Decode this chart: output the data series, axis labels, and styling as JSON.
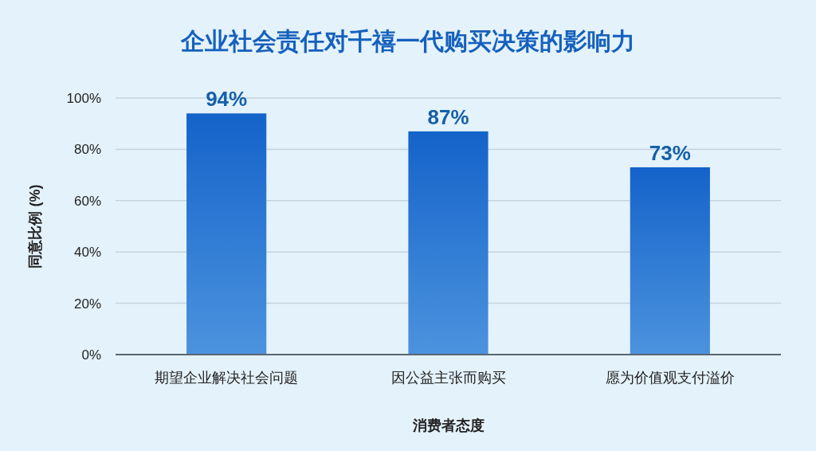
{
  "chart_data": {
    "type": "bar",
    "title": "企业社会责任对千禧一代购买决策的影响力",
    "xlabel": "消费者态度",
    "ylabel": "同意比例 (%)",
    "categories": [
      "期望企业解决社会问题",
      "因公益主张而购买",
      "愿为价值观支付溢价"
    ],
    "values": [
      94,
      87,
      73
    ],
    "value_labels": [
      "94%",
      "87%",
      "73%"
    ],
    "color": "#1f78d6",
    "ylim": [
      0,
      100
    ],
    "yticks": [
      {
        "value": 0,
        "label": "0%"
      },
      {
        "value": 20,
        "label": "20%"
      },
      {
        "value": 40,
        "label": "40%"
      },
      {
        "value": 60,
        "label": "60%"
      },
      {
        "value": 80,
        "label": "80%"
      },
      {
        "value": 100,
        "label": "100%"
      }
    ],
    "grid": "y"
  }
}
